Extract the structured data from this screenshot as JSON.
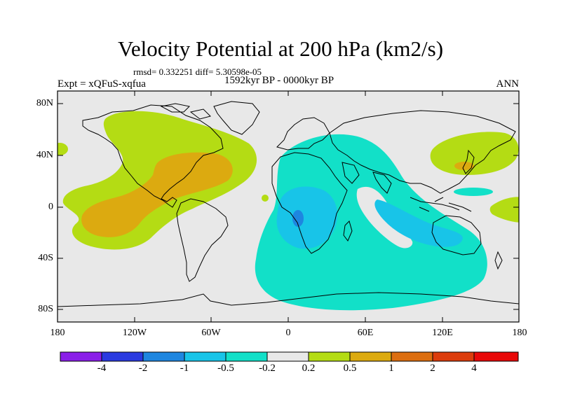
{
  "header": {
    "title": "Velocity Potential at 200 hPa (km2/s)",
    "stats": "rmsd= 0.332251 diff= 5.30598e-05",
    "subtitle": "1592kyr BP - 0000kyr BP",
    "experiment": "Expt = xQFuS-xqfua",
    "season": "ANN"
  },
  "axes": {
    "lat_labels": [
      "80N",
      "40N",
      "0",
      "40S",
      "80S"
    ],
    "lon_labels": [
      "180",
      "120W",
      "60W",
      "0",
      "60E",
      "120E",
      "180"
    ]
  },
  "colorbar": {
    "labels": [
      "-4",
      "-2",
      "-1",
      "-0.5",
      "-0.2",
      "0.2",
      "0.5",
      "1",
      "2",
      "4"
    ],
    "colors": [
      "#8a1ee8",
      "#2a3ae0",
      "#1e86e0",
      "#18c4e8",
      "#12e0c8",
      "#e8e8e8",
      "#b4dc14",
      "#dcaa10",
      "#dc6e10",
      "#dc3c0c",
      "#e80808"
    ]
  },
  "colors": {
    "land_background": "#e8e8e8",
    "coastline": "#000000"
  }
}
